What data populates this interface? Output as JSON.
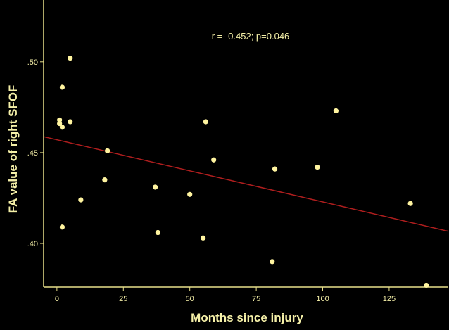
{
  "chart_data": {
    "type": "scatter",
    "xlabel": "Months since injury",
    "ylabel": "FA value of right SFOF",
    "annotation": "r =- 0.452; p=0.046",
    "xlim": [
      -5,
      147
    ],
    "ylim": [
      0.376,
      0.534
    ],
    "x_ticks": [
      0,
      25,
      50,
      75,
      100,
      125
    ],
    "x_tick_labels": [
      "0",
      "25",
      "50",
      "75",
      "100",
      "125"
    ],
    "y_ticks": [
      0.4,
      0.45,
      0.5
    ],
    "y_tick_labels": [
      ".40",
      ".45",
      ".50"
    ],
    "grid": false,
    "points": [
      {
        "x": 1,
        "y": 0.468
      },
      {
        "x": 1,
        "y": 0.466
      },
      {
        "x": 2,
        "y": 0.464
      },
      {
        "x": 2,
        "y": 0.486
      },
      {
        "x": 2,
        "y": 0.409
      },
      {
        "x": 5,
        "y": 0.502
      },
      {
        "x": 5,
        "y": 0.467
      },
      {
        "x": 9,
        "y": 0.424
      },
      {
        "x": 18,
        "y": 0.435
      },
      {
        "x": 19,
        "y": 0.451
      },
      {
        "x": 37,
        "y": 0.431
      },
      {
        "x": 38,
        "y": 0.406
      },
      {
        "x": 50,
        "y": 0.427
      },
      {
        "x": 55,
        "y": 0.403
      },
      {
        "x": 56,
        "y": 0.467
      },
      {
        "x": 59,
        "y": 0.446
      },
      {
        "x": 81,
        "y": 0.39
      },
      {
        "x": 82,
        "y": 0.441
      },
      {
        "x": 98,
        "y": 0.442
      },
      {
        "x": 105,
        "y": 0.473
      },
      {
        "x": 133,
        "y": 0.422
      },
      {
        "x": 139,
        "y": 0.377
      }
    ],
    "fit_line": {
      "x": [
        -5,
        147
      ],
      "y": [
        0.4588,
        0.4068
      ]
    },
    "colors": {
      "background": "#000000",
      "axis": "#e8df8a",
      "text": "#f5f0a8",
      "points": "#fff4a0",
      "fit_line": "#b01e1e"
    }
  }
}
